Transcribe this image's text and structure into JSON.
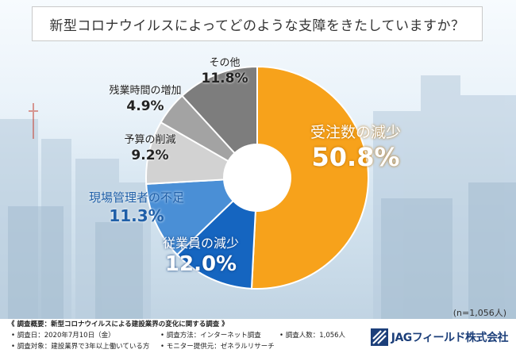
{
  "title": "新型コロナウイルスによってどのような支障をきたしていますか？",
  "chart_data": {
    "type": "pie",
    "title": "新型コロナウイルスによってどのような支障をきたしていますか？",
    "slices": [
      {
        "label": "受注数の減少",
        "value": 50.8,
        "value_label": "50.8%",
        "color": "#f7a21b"
      },
      {
        "label": "従業員の減少",
        "value": 12.0,
        "value_label": "12.0%",
        "color": "#1565c0"
      },
      {
        "label": "現場管理者の不足",
        "value": 11.3,
        "value_label": "11.3%",
        "color": "#4a8fd6"
      },
      {
        "label": "予算の削減",
        "value": 9.2,
        "value_label": "9.2%",
        "color": "#d2d2d2"
      },
      {
        "label": "残業時間の増加",
        "value": 4.9,
        "value_label": "4.9%",
        "color": "#a3a3a3"
      },
      {
        "label": "その他",
        "value": 11.8,
        "value_label": "11.8%",
        "color": "#7d7d7d"
      }
    ],
    "donut": true,
    "start": "12 o'clock",
    "direction": "clockwise"
  },
  "sample_note": "(n=1,056人)",
  "survey": {
    "heading": "《 調査概要：新型コロナウイルスによる建設業界の変化に関する調査 》",
    "date": "• 調査日：2020年7月10日（金）",
    "method": "• 調査方法：インターネット調査",
    "count": "• 調査人数：1,056人",
    "target": "• 調査対象：建設業界で3年以上働いている方",
    "provider": "• モニター提供元：ゼネラルリサーチ"
  },
  "logo_text": "JAGフィールド株式会社"
}
